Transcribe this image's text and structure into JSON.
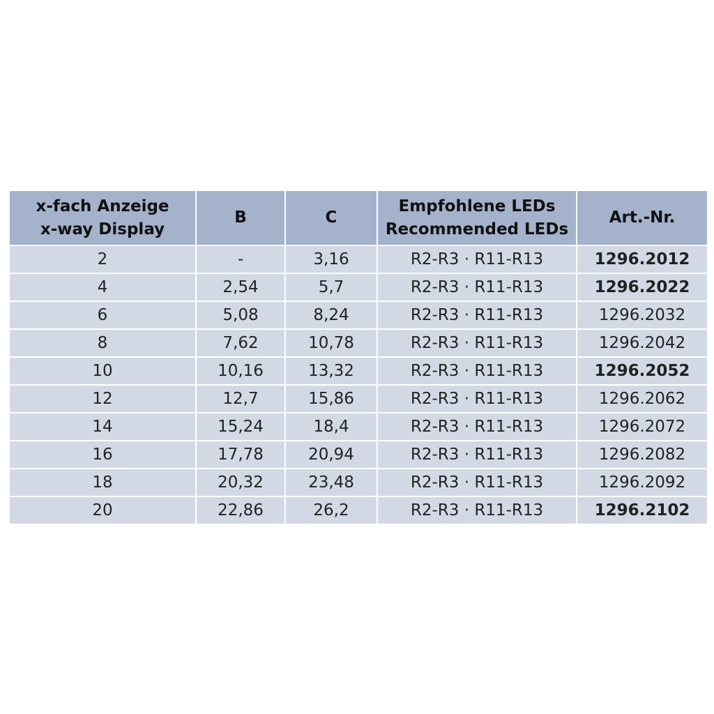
{
  "table": {
    "headers": [
      [
        "x-fach Anzeige",
        "x-way Display"
      ],
      [
        "B"
      ],
      [
        "C"
      ],
      [
        "Empfohlene LEDs",
        "Recommended LEDs"
      ],
      [
        "Art.-Nr."
      ]
    ],
    "rows": [
      {
        "cells": [
          "2",
          "-",
          "3,16",
          "R2-R3 · R11-R13",
          "1296.2012"
        ],
        "art_bold": true
      },
      {
        "cells": [
          "4",
          "2,54",
          "5,7",
          "R2-R3 · R11-R13",
          "1296.2022"
        ],
        "art_bold": true
      },
      {
        "cells": [
          "6",
          "5,08",
          "8,24",
          "R2-R3 · R11-R13",
          "1296.2032"
        ],
        "art_bold": false
      },
      {
        "cells": [
          "8",
          "7,62",
          "10,78",
          "R2-R3 · R11-R13",
          "1296.2042"
        ],
        "art_bold": false
      },
      {
        "cells": [
          "10",
          "10,16",
          "13,32",
          "R2-R3 · R11-R13",
          "1296.2052"
        ],
        "art_bold": true
      },
      {
        "cells": [
          "12",
          "12,7",
          "15,86",
          "R2-R3 · R11-R13",
          "1296.2062"
        ],
        "art_bold": false
      },
      {
        "cells": [
          "14",
          "15,24",
          "18,4",
          "R2-R3 · R11-R13",
          "1296.2072"
        ],
        "art_bold": false
      },
      {
        "cells": [
          "16",
          "17,78",
          "20,94",
          "R2-R3 · R11-R13",
          "1296.2082"
        ],
        "art_bold": false
      },
      {
        "cells": [
          "18",
          "20,32",
          "23,48",
          "R2-R3 · R11-R13",
          "1296.2092"
        ],
        "art_bold": false
      },
      {
        "cells": [
          "20",
          "22,86",
          "26,2",
          "R2-R3 · R11-R13",
          "1296.2102"
        ],
        "art_bold": true
      }
    ]
  },
  "colors": {
    "header_bg": "#a4b2cb",
    "row_bg": "#d2d9e5"
  }
}
